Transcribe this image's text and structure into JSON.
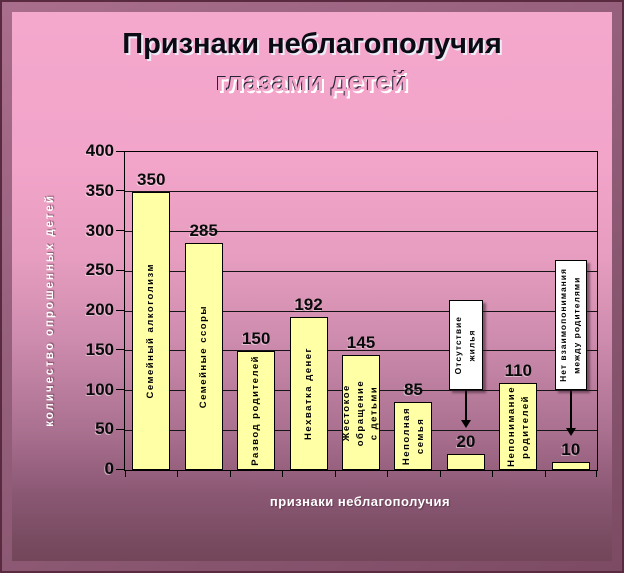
{
  "title": {
    "line1": "Признаки неблагополучия",
    "line2": "глазами детей"
  },
  "colors": {
    "bar_fill": "#FFFFA6",
    "background_top": "#F4A8CC",
    "background_bottom": "#744659",
    "frame": "#8A5773",
    "callout_fill": "#FFFFFF",
    "axis_text_light": "#FFFFFF",
    "text_dark": "#0A0A0A"
  },
  "chart_data": {
    "type": "bar",
    "title": "Признаки неблагополучия глазами детей",
    "xlabel": "признаки неблагополучия",
    "ylabel": "количество опрошенных детей",
    "ylim": [
      0,
      400
    ],
    "ytick_step": 50,
    "yticks": [
      0,
      50,
      100,
      150,
      200,
      250,
      300,
      350,
      400
    ],
    "grid": true,
    "legend": false,
    "categories": [
      "Семейный алкоголизм",
      "Семейные ссоры",
      "Развод родителей",
      "Нехватка денег",
      "Жестокое обращение с детьми",
      "Неполная семья",
      "Отсутствие жилья",
      "Непонимание родителей",
      "Нет взаимопонимания между родителями"
    ],
    "category_display": [
      "Семейный алкоголизм",
      "Семейные ссоры",
      "Развод родителей",
      "Нехватка денег",
      "Жестокое обращение\nс детьми",
      "Неполная\nсемья",
      "Отсутствие\nжилья",
      "Непонимание\nродителей",
      "Нет взаимопонимания\nмежду родителями"
    ],
    "values": [
      350,
      285,
      150,
      192,
      145,
      85,
      20,
      110,
      10
    ],
    "label_placement": [
      "inside",
      "inside",
      "inside",
      "inside",
      "inside",
      "inside",
      "callout",
      "inside",
      "callout"
    ]
  }
}
